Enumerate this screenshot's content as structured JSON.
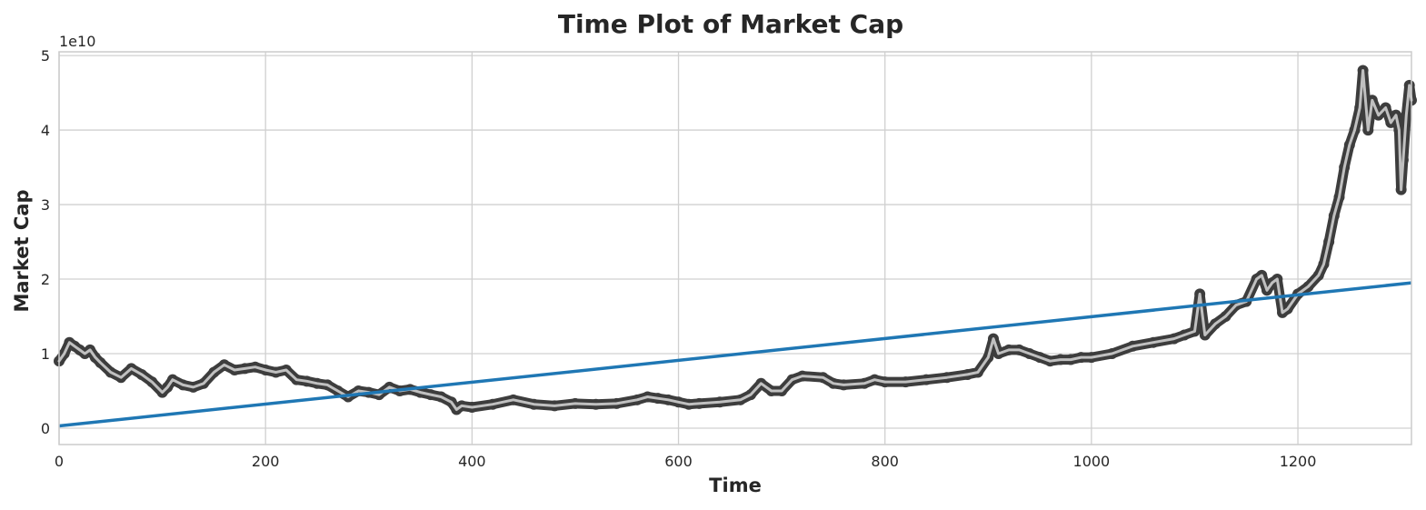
{
  "chart_data": {
    "type": "line",
    "title": "Time Plot of Market Cap",
    "xlabel": "Time",
    "ylabel": "Market Cap",
    "y_offset_label": "1e10",
    "xlim": [
      0,
      1310
    ],
    "ylim": [
      -0.22,
      5.05
    ],
    "x_ticks": [
      0,
      200,
      400,
      600,
      800,
      1000,
      1200
    ],
    "y_ticks": [
      0,
      1,
      2,
      3,
      4,
      5
    ],
    "grid": true,
    "legend": "none",
    "colors": {
      "series_outer": "#3d3d3d",
      "series_inner": "#c0c0c0",
      "trend": "#1f77b4",
      "grid": "#d0d0d0",
      "axes_edge": "#cccccc"
    },
    "series": [
      {
        "style": "line-with-markers",
        "x": [
          0,
          5,
          10,
          15,
          20,
          25,
          30,
          35,
          40,
          50,
          60,
          70,
          80,
          90,
          100,
          105,
          110,
          120,
          130,
          140,
          150,
          160,
          170,
          180,
          190,
          200,
          210,
          220,
          230,
          240,
          250,
          260,
          270,
          280,
          290,
          300,
          310,
          320,
          330,
          340,
          350,
          360,
          370,
          380,
          385,
          390,
          400,
          420,
          440,
          460,
          480,
          500,
          520,
          540,
          560,
          570,
          580,
          590,
          600,
          610,
          620,
          640,
          660,
          670,
          680,
          690,
          700,
          710,
          720,
          740,
          750,
          760,
          780,
          790,
          800,
          820,
          840,
          860,
          880,
          890,
          900,
          905,
          910,
          920,
          930,
          940,
          950,
          960,
          970,
          980,
          990,
          1000,
          1020,
          1040,
          1060,
          1080,
          1090,
          1100,
          1105,
          1110,
          1120,
          1130,
          1140,
          1150,
          1160,
          1165,
          1170,
          1175,
          1180,
          1185,
          1190,
          1200,
          1210,
          1220,
          1225,
          1230,
          1235,
          1240,
          1245,
          1250,
          1255,
          1260,
          1263,
          1268,
          1272,
          1278,
          1285,
          1290,
          1295,
          1298,
          1300,
          1302,
          1305,
          1308,
          1310
        ],
        "values": [
          0.9,
          1.0,
          1.15,
          1.1,
          1.05,
          1.0,
          1.05,
          0.95,
          0.88,
          0.75,
          0.68,
          0.8,
          0.72,
          0.62,
          0.48,
          0.55,
          0.65,
          0.58,
          0.55,
          0.6,
          0.75,
          0.85,
          0.78,
          0.8,
          0.82,
          0.78,
          0.75,
          0.78,
          0.65,
          0.63,
          0.6,
          0.58,
          0.5,
          0.42,
          0.5,
          0.48,
          0.45,
          0.55,
          0.5,
          0.52,
          0.48,
          0.45,
          0.42,
          0.35,
          0.25,
          0.3,
          0.28,
          0.32,
          0.38,
          0.32,
          0.3,
          0.33,
          0.32,
          0.33,
          0.38,
          0.42,
          0.4,
          0.38,
          0.35,
          0.32,
          0.33,
          0.35,
          0.38,
          0.45,
          0.6,
          0.5,
          0.5,
          0.65,
          0.7,
          0.68,
          0.6,
          0.58,
          0.6,
          0.65,
          0.62,
          0.62,
          0.65,
          0.68,
          0.72,
          0.75,
          0.95,
          1.2,
          1.0,
          1.05,
          1.05,
          1.0,
          0.95,
          0.9,
          0.92,
          0.92,
          0.95,
          0.95,
          1.0,
          1.1,
          1.15,
          1.2,
          1.25,
          1.3,
          1.8,
          1.25,
          1.4,
          1.5,
          1.65,
          1.7,
          2.0,
          2.05,
          1.85,
          1.95,
          2.0,
          1.55,
          1.6,
          1.8,
          1.9,
          2.05,
          2.2,
          2.5,
          2.85,
          3.1,
          3.5,
          3.8,
          4.0,
          4.3,
          4.8,
          4.0,
          4.4,
          4.2,
          4.3,
          4.1,
          4.2,
          4.0,
          3.2,
          3.6,
          4.2,
          4.6,
          4.4
        ],
        "markers": true
      },
      {
        "style": "trend-line",
        "x": [
          0,
          1310
        ],
        "values": [
          0.03,
          1.95
        ]
      }
    ]
  }
}
